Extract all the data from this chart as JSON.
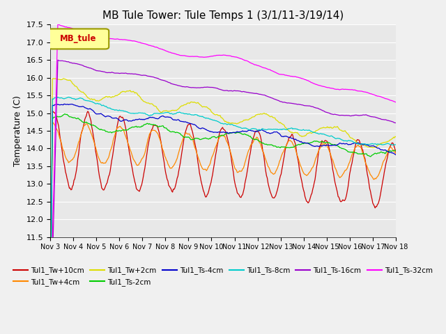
{
  "title": "MB Tule Tower: Tule Temps 1 (3/1/11-3/19/14)",
  "ylabel": "Temperature (C)",
  "xlabel": "",
  "ylim": [
    11.5,
    17.5
  ],
  "yticks": [
    11.5,
    12.0,
    12.5,
    13.0,
    13.5,
    14.0,
    14.5,
    15.0,
    15.5,
    16.0,
    16.5,
    17.0,
    17.5
  ],
  "xtick_labels": [
    "Nov 3",
    "Nov 4",
    "Nov 5",
    "Nov 6",
    "Nov 7",
    "Nov 8",
    "Nov 9",
    "Nov 10",
    "Nov 11",
    "Nov 12",
    "Nov 13",
    "Nov 14",
    "Nov 15",
    "Nov 16",
    "Nov 17",
    "Nov 18"
  ],
  "legend_label": "MB_tule",
  "series": [
    {
      "name": "Tul1_Tw+10cm",
      "color": "#cc0000"
    },
    {
      "name": "Tul1_Tw+4cm",
      "color": "#ff8800"
    },
    {
      "name": "Tul1_Tw+2cm",
      "color": "#dddd00"
    },
    {
      "name": "Tul1_Ts-2cm",
      "color": "#00cc00"
    },
    {
      "name": "Tul1_Ts-4cm",
      "color": "#0000cc"
    },
    {
      "name": "Tul1_Ts-8cm",
      "color": "#00cccc"
    },
    {
      "name": "Tul1_Ts-16cm",
      "color": "#9900cc"
    },
    {
      "name": "Tul1_Ts-32cm",
      "color": "#ff00ff"
    }
  ],
  "background_color": "#e8e8e8",
  "grid_color": "#ffffff",
  "title_fontsize": 11,
  "axis_fontsize": 9,
  "tick_fontsize": 8
}
